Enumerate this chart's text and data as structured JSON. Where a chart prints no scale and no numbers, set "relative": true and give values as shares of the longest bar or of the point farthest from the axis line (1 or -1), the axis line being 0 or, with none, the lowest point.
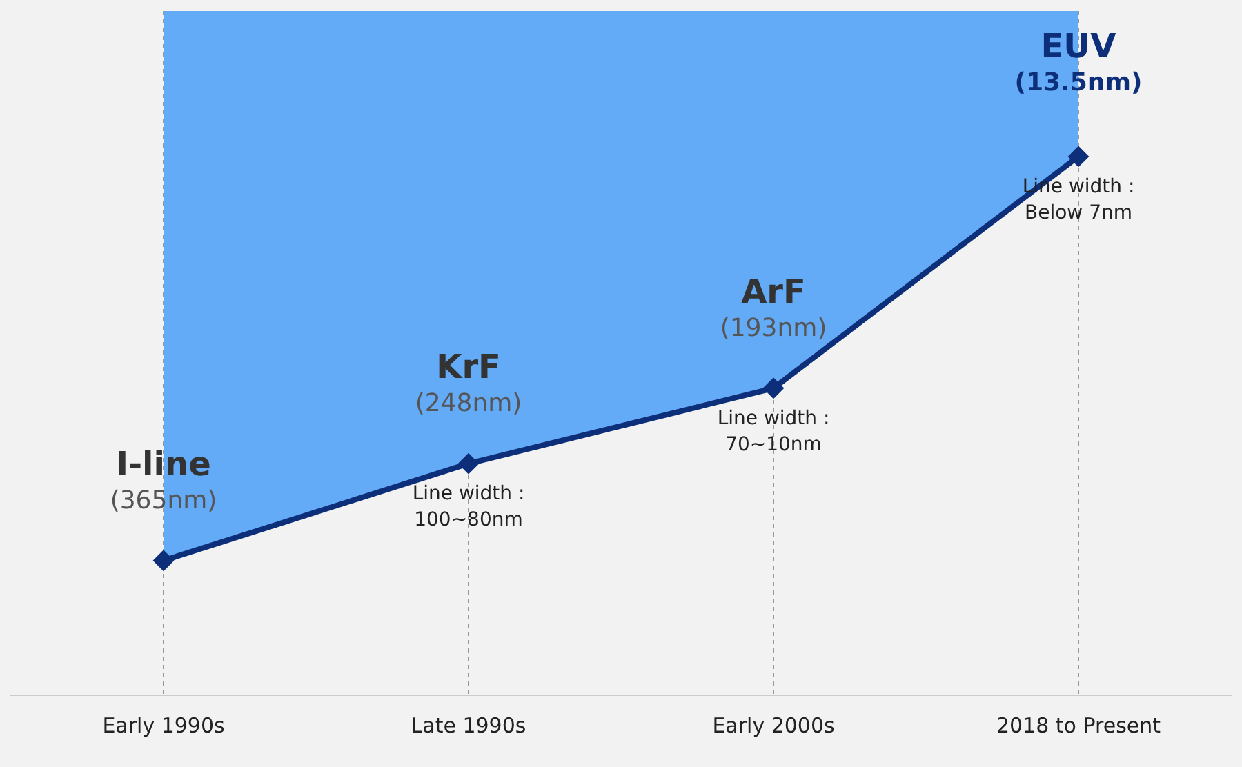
{
  "chart_data": {
    "type": "line",
    "relative": true,
    "categories": [
      "Early 1990s",
      "Late 1990s",
      "Early 2000s",
      "2018 to Present"
    ],
    "series": [
      {
        "color": "#0d2f7a",
        "values": [
          0.25,
          0.43,
          0.57,
          1
        ]
      }
    ],
    "marker": "diamond",
    "grid": "x",
    "legend": false,
    "annotations": [
      {
        "text": "I-line",
        "x": "Early 1990s",
        "y": 0.25
      },
      {
        "text": "(365nm)",
        "x": "Early 1990s",
        "y": 0.25
      },
      {
        "text": "KrF",
        "x": "Late 1990s",
        "y": 0.43
      },
      {
        "text": "(248nm)",
        "x": "Late 1990s",
        "y": 0.43
      },
      {
        "text": "Line width :",
        "x": "Late 1990s",
        "y": 0.43
      },
      {
        "text": "100~80nm",
        "x": "Late 1990s",
        "y": 0.43
      },
      {
        "text": "ArF",
        "x": "Early 2000s",
        "y": 0.57
      },
      {
        "text": "(193nm)",
        "x": "Early 2000s",
        "y": 0.57
      },
      {
        "text": "Line width :",
        "x": "Early 2000s",
        "y": 0.57
      },
      {
        "text": "70~10nm",
        "x": "Early 2000s",
        "y": 0.57
      },
      {
        "text": "EUV",
        "x": "2018 to Present",
        "y": 1
      },
      {
        "text": "(13.5nm)",
        "x": "2018 to Present",
        "y": 1
      },
      {
        "text": "Line width :",
        "x": "2018 to Present",
        "y": 1
      },
      {
        "text": "Below 7nm",
        "x": "2018 to Present",
        "y": 1
      }
    ]
  }
}
